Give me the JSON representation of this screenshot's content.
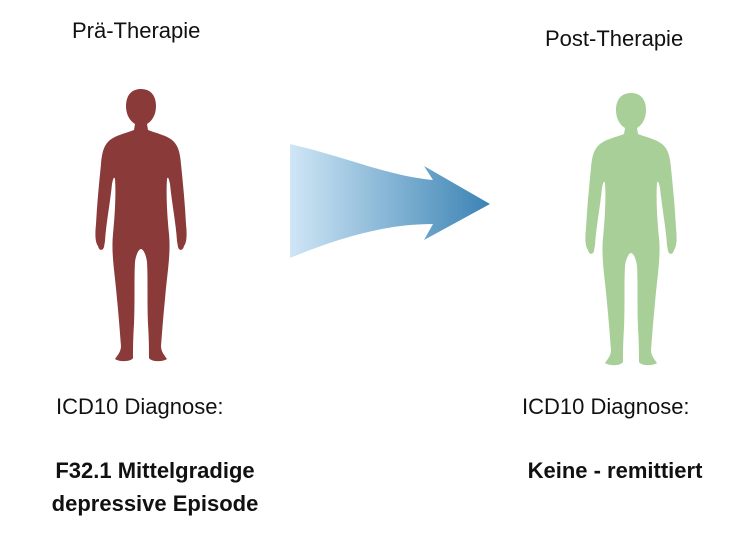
{
  "pre": {
    "title": "Prä-Therapie",
    "diagnosis_label": "ICD10 Diagnose:",
    "diagnosis_line1": "F32.1 Mittelgradige",
    "diagnosis_line2": "depressive Episode",
    "figure_color": "#8b3a3a"
  },
  "post": {
    "title": "Post-Therapie",
    "diagnosis_label": "ICD10 Diagnose:",
    "diagnosis_value": "Keine - remittiert",
    "figure_color": "#a8cf98"
  },
  "arrow": {
    "color_start": "#cfe6f6",
    "color_end": "#3b83b4"
  }
}
